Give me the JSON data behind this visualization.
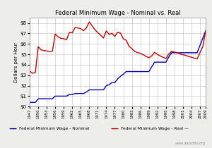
{
  "title": "Federal Minimum Wage - Nominal vs. Real",
  "ylabel": "Dollars per Hour",
  "legend_nominal": "Federal Minimum Wage - Nominal",
  "legend_real": "Federal Minimum Wage - Real —",
  "watermark": "www.data360.org",
  "nominal_color": "#0000bb",
  "real_color": "#cc0000",
  "background_color": "#ededea",
  "plot_bg_color": "#ffffff",
  "ylim": [
    0,
    8.5
  ],
  "yticks": [
    0,
    1,
    2,
    3,
    4,
    5,
    6,
    7,
    8
  ],
  "nominal": {
    "years": [
      1947,
      1948,
      1949,
      1950,
      1951,
      1952,
      1953,
      1954,
      1955,
      1956,
      1957,
      1958,
      1959,
      1960,
      1961,
      1962,
      1963,
      1964,
      1965,
      1966,
      1967,
      1968,
      1969,
      1970,
      1971,
      1972,
      1973,
      1974,
      1975,
      1976,
      1977,
      1978,
      1979,
      1980,
      1981,
      1982,
      1983,
      1984,
      1985,
      1986,
      1987,
      1988,
      1989,
      1990,
      1991,
      1992,
      1993,
      1994,
      1995,
      1996,
      1997,
      1998,
      1999,
      2000,
      2001,
      2002,
      2003,
      2004,
      2005,
      2006,
      2007,
      2008,
      2009
    ],
    "values": [
      0.4,
      0.4,
      0.4,
      0.75,
      0.75,
      0.75,
      0.75,
      0.75,
      0.75,
      1.0,
      1.0,
      1.0,
      1.0,
      1.0,
      1.15,
      1.15,
      1.25,
      1.25,
      1.25,
      1.25,
      1.4,
      1.6,
      1.6,
      1.6,
      1.6,
      1.6,
      1.6,
      2.0,
      2.1,
      2.3,
      2.3,
      2.65,
      2.9,
      3.1,
      3.35,
      3.35,
      3.35,
      3.35,
      3.35,
      3.35,
      3.35,
      3.35,
      3.35,
      3.8,
      4.25,
      4.25,
      4.25,
      4.25,
      4.25,
      4.75,
      5.15,
      5.15,
      5.15,
      5.15,
      5.15,
      5.15,
      5.15,
      5.15,
      5.15,
      5.15,
      5.85,
      6.55,
      7.25
    ]
  },
  "real": {
    "years": [
      1947,
      1948,
      1949,
      1950,
      1951,
      1952,
      1953,
      1954,
      1955,
      1956,
      1957,
      1958,
      1959,
      1960,
      1961,
      1962,
      1963,
      1964,
      1965,
      1966,
      1967,
      1968,
      1969,
      1970,
      1971,
      1972,
      1973,
      1974,
      1975,
      1976,
      1977,
      1978,
      1979,
      1980,
      1981,
      1982,
      1983,
      1984,
      1985,
      1986,
      1987,
      1988,
      1989,
      1990,
      1991,
      1992,
      1993,
      1994,
      1995,
      1996,
      1997,
      1998,
      1999,
      2000,
      2001,
      2002,
      2003,
      2004,
      2005,
      2006,
      2007,
      2008,
      2009
    ],
    "values": [
      3.4,
      3.19,
      3.25,
      5.73,
      5.44,
      5.36,
      5.32,
      5.28,
      5.3,
      6.94,
      6.67,
      6.53,
      6.5,
      6.4,
      7.11,
      7.06,
      7.57,
      7.52,
      7.45,
      7.26,
      7.55,
      8.1,
      7.73,
      7.35,
      7.08,
      6.84,
      6.56,
      7.24,
      6.91,
      7.01,
      6.71,
      7.11,
      7.03,
      6.48,
      6.35,
      5.78,
      5.54,
      5.29,
      5.16,
      5.1,
      4.97,
      4.8,
      4.67,
      4.85,
      5.19,
      5.0,
      4.84,
      4.72,
      4.6,
      5.03,
      5.3,
      5.22,
      5.15,
      5.04,
      4.96,
      4.89,
      4.8,
      4.72,
      4.64,
      4.56,
      5.16,
      5.73,
      7.25
    ]
  },
  "xtick_years": [
    1947,
    1950,
    1953,
    1956,
    1959,
    1962,
    1965,
    1968,
    1971,
    1974,
    1977,
    1980,
    1983,
    1986,
    1989,
    1992,
    1995,
    1998,
    2001,
    2004,
    2007,
    2009
  ]
}
